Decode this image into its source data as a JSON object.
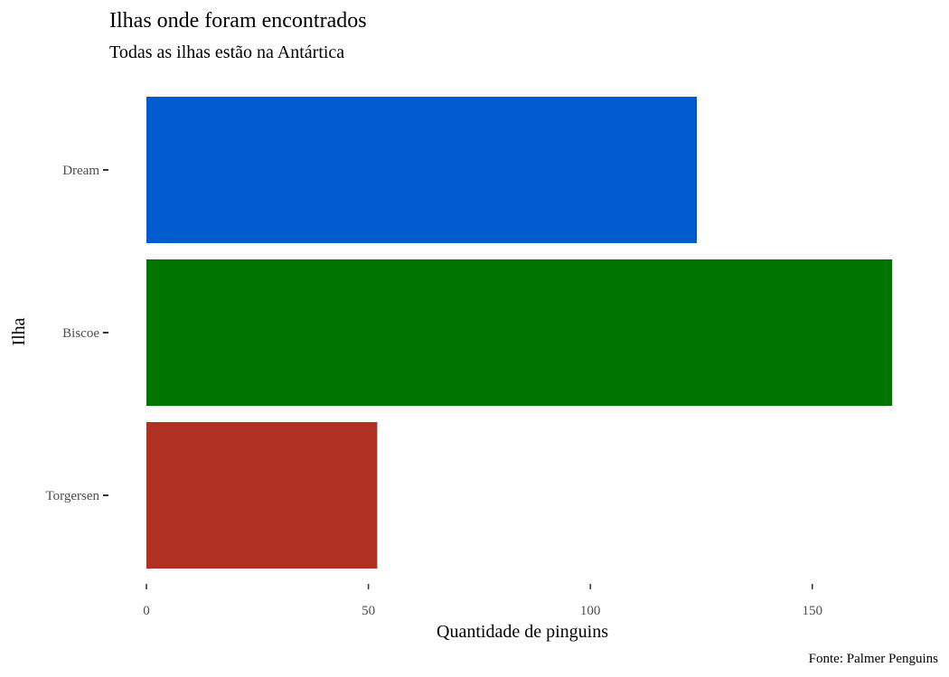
{
  "chart_data": {
    "type": "bar",
    "orientation": "horizontal",
    "title": "Ilhas onde foram encontrados",
    "subtitle": "Todas as ilhas estão na Antártica",
    "xlabel": "Quantidade de pinguins",
    "ylabel": "Ilha",
    "caption": "Fonte: Palmer Penguins",
    "categories": [
      "Dream",
      "Biscoe",
      "Torgersen"
    ],
    "values": [
      124,
      168,
      52
    ],
    "colors": [
      "#005BCF",
      "#007400",
      "#B03123"
    ],
    "xlim": [
      0,
      170
    ],
    "xticks": [
      0,
      50,
      100,
      150
    ],
    "grid": false,
    "legend": "none"
  }
}
